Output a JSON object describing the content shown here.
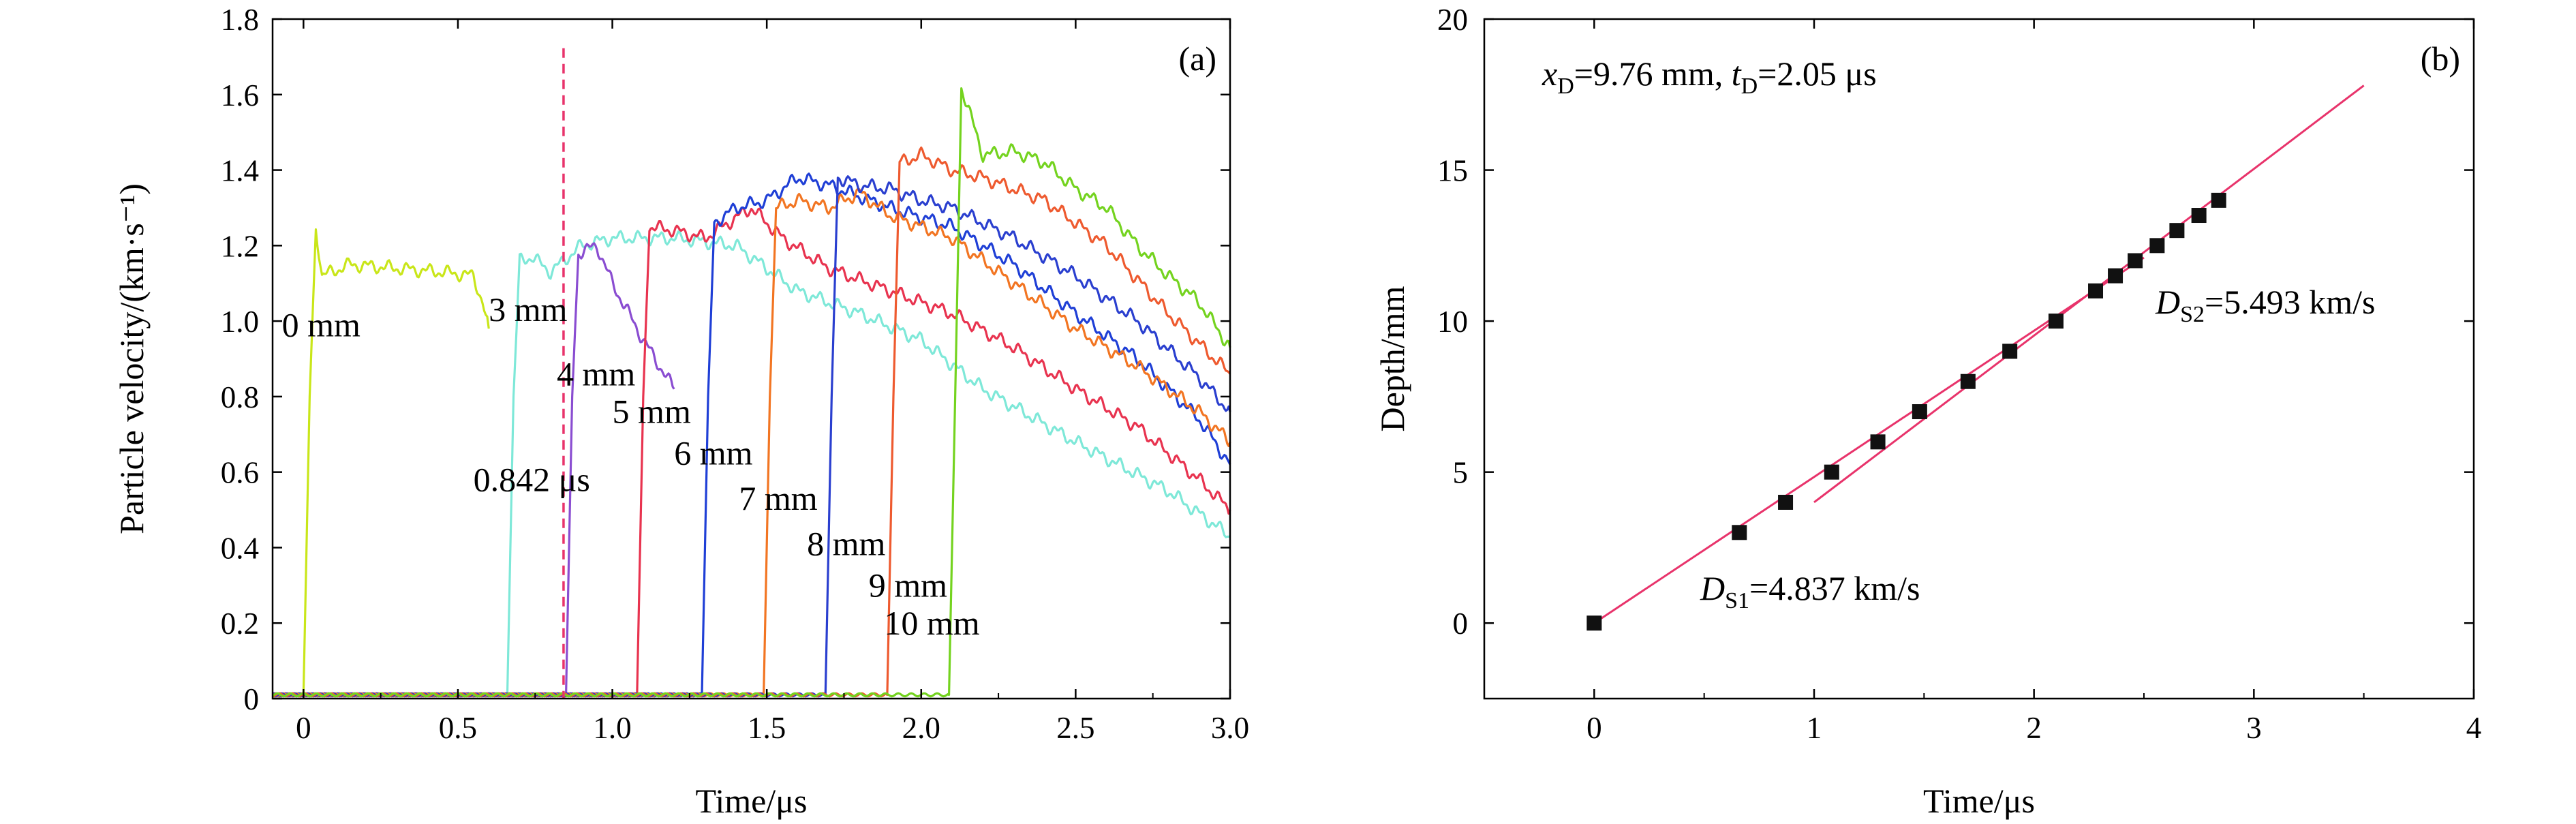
{
  "chart_data": [
    {
      "type": "line",
      "panel_label": "(a)",
      "xlabel": "Time/μs",
      "ylabel": "Particle velocity/(km·s⁻¹)",
      "xlim": [
        -0.1,
        3.0
      ],
      "ylim": [
        0,
        1.8
      ],
      "xticks": [
        0,
        0.5,
        1.0,
        1.5,
        2.0,
        2.5,
        3.0
      ],
      "xtick_labels": [
        "0",
        "0.5",
        "1.0",
        "1.5",
        "2.0",
        "2.5",
        "3.0"
      ],
      "yticks": [
        0,
        0.2,
        0.4,
        0.6,
        0.8,
        1.0,
        1.2,
        1.4,
        1.6,
        1.8
      ],
      "ytick_labels": [
        "0",
        "0.2",
        "0.4",
        "0.6",
        "0.8",
        "1.0",
        "1.2",
        "1.4",
        "1.6",
        "1.8"
      ],
      "marker_line": {
        "x": 0.842,
        "label": "0.842 μs",
        "color": "#e8336b"
      },
      "series": [
        {
          "name": "0 mm",
          "color": "#c9e619",
          "arrival": 0.02,
          "points": [
            [
              -0.1,
              0.01
            ],
            [
              0.0,
              0.01
            ],
            [
              0.02,
              0.8
            ],
            [
              0.04,
              1.25
            ],
            [
              0.06,
              1.12
            ],
            [
              0.15,
              1.15
            ],
            [
              0.3,
              1.14
            ],
            [
              0.45,
              1.13
            ],
            [
              0.55,
              1.12
            ],
            [
              0.58,
              1.05
            ],
            [
              0.6,
              0.98
            ]
          ]
        },
        {
          "name": "3 mm",
          "color": "#7ee8d8",
          "arrival": 0.68,
          "points": [
            [
              -0.1,
              0.01
            ],
            [
              0.66,
              0.01
            ],
            [
              0.68,
              0.8
            ],
            [
              0.7,
              1.16
            ],
            [
              0.74,
              1.17
            ],
            [
              0.8,
              1.13
            ],
            [
              0.9,
              1.2
            ],
            [
              1.0,
              1.22
            ],
            [
              1.2,
              1.22
            ],
            [
              1.4,
              1.2
            ],
            [
              1.6,
              1.08
            ],
            [
              1.8,
              1.02
            ],
            [
              2.0,
              0.95
            ],
            [
              2.2,
              0.82
            ],
            [
              2.5,
              0.68
            ],
            [
              2.8,
              0.55
            ],
            [
              3.0,
              0.43
            ]
          ]
        },
        {
          "name": "4 mm",
          "color": "#8a4dd1",
          "arrival": 0.86,
          "points": [
            [
              -0.1,
              0.01
            ],
            [
              0.85,
              0.01
            ],
            [
              0.87,
              0.8
            ],
            [
              0.89,
              1.18
            ],
            [
              0.95,
              1.2
            ],
            [
              1.0,
              1.1
            ],
            [
              1.1,
              0.95
            ],
            [
              1.2,
              0.82
            ]
          ]
        },
        {
          "name": "5 mm",
          "color": "#e8334f",
          "arrival": 1.1,
          "points": [
            [
              -0.1,
              0.01
            ],
            [
              1.08,
              0.01
            ],
            [
              1.1,
              0.8
            ],
            [
              1.12,
              1.25
            ],
            [
              1.2,
              1.24
            ],
            [
              1.3,
              1.22
            ],
            [
              1.45,
              1.3
            ],
            [
              1.55,
              1.22
            ],
            [
              1.7,
              1.14
            ],
            [
              1.9,
              1.08
            ],
            [
              2.1,
              1.02
            ],
            [
              2.3,
              0.93
            ],
            [
              2.5,
              0.82
            ],
            [
              2.7,
              0.72
            ],
            [
              2.9,
              0.58
            ],
            [
              3.0,
              0.5
            ]
          ]
        },
        {
          "name": "6 mm",
          "color": "#1f3fd6",
          "arrival": 1.3,
          "points": [
            [
              -0.1,
              0.01
            ],
            [
              1.29,
              0.01
            ],
            [
              1.31,
              0.8
            ],
            [
              1.33,
              1.26
            ],
            [
              1.4,
              1.3
            ],
            [
              1.5,
              1.32
            ],
            [
              1.6,
              1.38
            ],
            [
              1.7,
              1.36
            ],
            [
              1.9,
              1.3
            ],
            [
              2.1,
              1.25
            ],
            [
              2.3,
              1.15
            ],
            [
              2.5,
              1.02
            ],
            [
              2.7,
              0.9
            ],
            [
              2.9,
              0.74
            ],
            [
              3.0,
              0.62
            ]
          ]
        },
        {
          "name": "7 mm",
          "color": "#f27522",
          "arrival": 1.5,
          "points": [
            [
              -0.1,
              0.01
            ],
            [
              1.49,
              0.01
            ],
            [
              1.51,
              0.8
            ],
            [
              1.53,
              1.3
            ],
            [
              1.6,
              1.32
            ],
            [
              1.7,
              1.3
            ],
            [
              1.8,
              1.34
            ],
            [
              1.9,
              1.28
            ],
            [
              2.1,
              1.22
            ],
            [
              2.3,
              1.1
            ],
            [
              2.5,
              0.98
            ],
            [
              2.7,
              0.88
            ],
            [
              2.9,
              0.76
            ],
            [
              3.0,
              0.68
            ]
          ]
        },
        {
          "name": "8 mm",
          "color": "#2a3fcf",
          "arrival": 1.7,
          "points": [
            [
              -0.1,
              0.01
            ],
            [
              1.69,
              0.01
            ],
            [
              1.71,
              0.8
            ],
            [
              1.73,
              1.38
            ],
            [
              1.8,
              1.36
            ],
            [
              1.9,
              1.35
            ],
            [
              2.0,
              1.32
            ],
            [
              2.1,
              1.3
            ],
            [
              2.3,
              1.22
            ],
            [
              2.5,
              1.12
            ],
            [
              2.7,
              1.0
            ],
            [
              2.9,
              0.85
            ],
            [
              3.0,
              0.76
            ]
          ]
        },
        {
          "name": "9 mm",
          "color": "#ee5a2f",
          "arrival": 1.9,
          "points": [
            [
              -0.1,
              0.01
            ],
            [
              1.89,
              0.01
            ],
            [
              1.91,
              0.8
            ],
            [
              1.93,
              1.42
            ],
            [
              2.0,
              1.44
            ],
            [
              2.1,
              1.4
            ],
            [
              2.2,
              1.38
            ],
            [
              2.4,
              1.32
            ],
            [
              2.6,
              1.2
            ],
            [
              2.8,
              1.02
            ],
            [
              3.0,
              0.86
            ]
          ]
        },
        {
          "name": "10 mm",
          "color": "#74d31f",
          "arrival": 2.1,
          "points": [
            [
              -0.1,
              0.01
            ],
            [
              2.09,
              0.01
            ],
            [
              2.11,
              0.8
            ],
            [
              2.13,
              1.62
            ],
            [
              2.2,
              1.44
            ],
            [
              2.3,
              1.45
            ],
            [
              2.4,
              1.42
            ],
            [
              2.5,
              1.35
            ],
            [
              2.6,
              1.3
            ],
            [
              2.7,
              1.2
            ],
            [
              2.8,
              1.12
            ],
            [
              2.9,
              1.05
            ],
            [
              3.0,
              0.93
            ]
          ]
        }
      ],
      "labels": [
        {
          "text": "0 mm",
          "x": -0.07,
          "y": 0.96
        },
        {
          "text": "3 mm",
          "x": 0.6,
          "y": 1.0
        },
        {
          "text": "4 mm",
          "x": 0.82,
          "y": 0.83
        },
        {
          "text": "5 mm",
          "x": 1.0,
          "y": 0.73
        },
        {
          "text": "6 mm",
          "x": 1.2,
          "y": 0.62
        },
        {
          "text": "7 mm",
          "x": 1.41,
          "y": 0.5
        },
        {
          "text": "8 mm",
          "x": 1.63,
          "y": 0.38
        },
        {
          "text": "9 mm",
          "x": 1.83,
          "y": 0.27
        },
        {
          "text": "10 mm",
          "x": 1.88,
          "y": 0.17
        },
        {
          "text": "0.842 μs",
          "x": 0.55,
          "y": 0.55
        }
      ]
    },
    {
      "type": "scatter",
      "panel_label": "(b)",
      "xlabel": "Time/μs",
      "ylabel": "Depth/mm",
      "xlim": [
        -0.5,
        4
      ],
      "ylim": [
        -2.5,
        20
      ],
      "xticks": [
        0,
        1,
        2,
        3,
        4
      ],
      "xtick_labels": [
        "0",
        "1",
        "2",
        "3",
        "4"
      ],
      "yticks": [
        0,
        5,
        10,
        15,
        20
      ],
      "ytick_labels": [
        "0",
        "5",
        "10",
        "15",
        "20"
      ],
      "annotation": {
        "x_sym": "x",
        "x_sub": "D",
        "x_val": "=9.76 mm,",
        "t_sym": "t",
        "t_sub": "D",
        "t_val": "=2.05 μs"
      },
      "fit_labels": {
        "s1": {
          "sym": "D",
          "sub": "S1",
          "val": "=4.837 km/s"
        },
        "s2": {
          "sym": "D",
          "sub": "S2",
          "val": "=5.493 km/s"
        }
      },
      "points": [
        [
          0,
          0
        ],
        [
          0.66,
          3
        ],
        [
          0.87,
          4
        ],
        [
          1.08,
          5
        ],
        [
          1.29,
          6
        ],
        [
          1.48,
          7
        ],
        [
          1.7,
          8
        ],
        [
          1.89,
          9
        ],
        [
          2.1,
          10
        ],
        [
          2.28,
          11
        ],
        [
          2.37,
          11.5
        ],
        [
          2.46,
          12
        ],
        [
          2.56,
          12.5
        ],
        [
          2.65,
          13
        ],
        [
          2.75,
          13.5
        ],
        [
          2.84,
          14
        ]
      ],
      "fit_lines": [
        {
          "name": "DS1",
          "x": [
            0,
            2.5
          ],
          "y": [
            0,
            12.1
          ],
          "color": "#e8336b"
        },
        {
          "name": "DS2",
          "x": [
            1.0,
            3.5
          ],
          "y": [
            4.0,
            17.8
          ],
          "color": "#e8336b"
        }
      ]
    }
  ]
}
